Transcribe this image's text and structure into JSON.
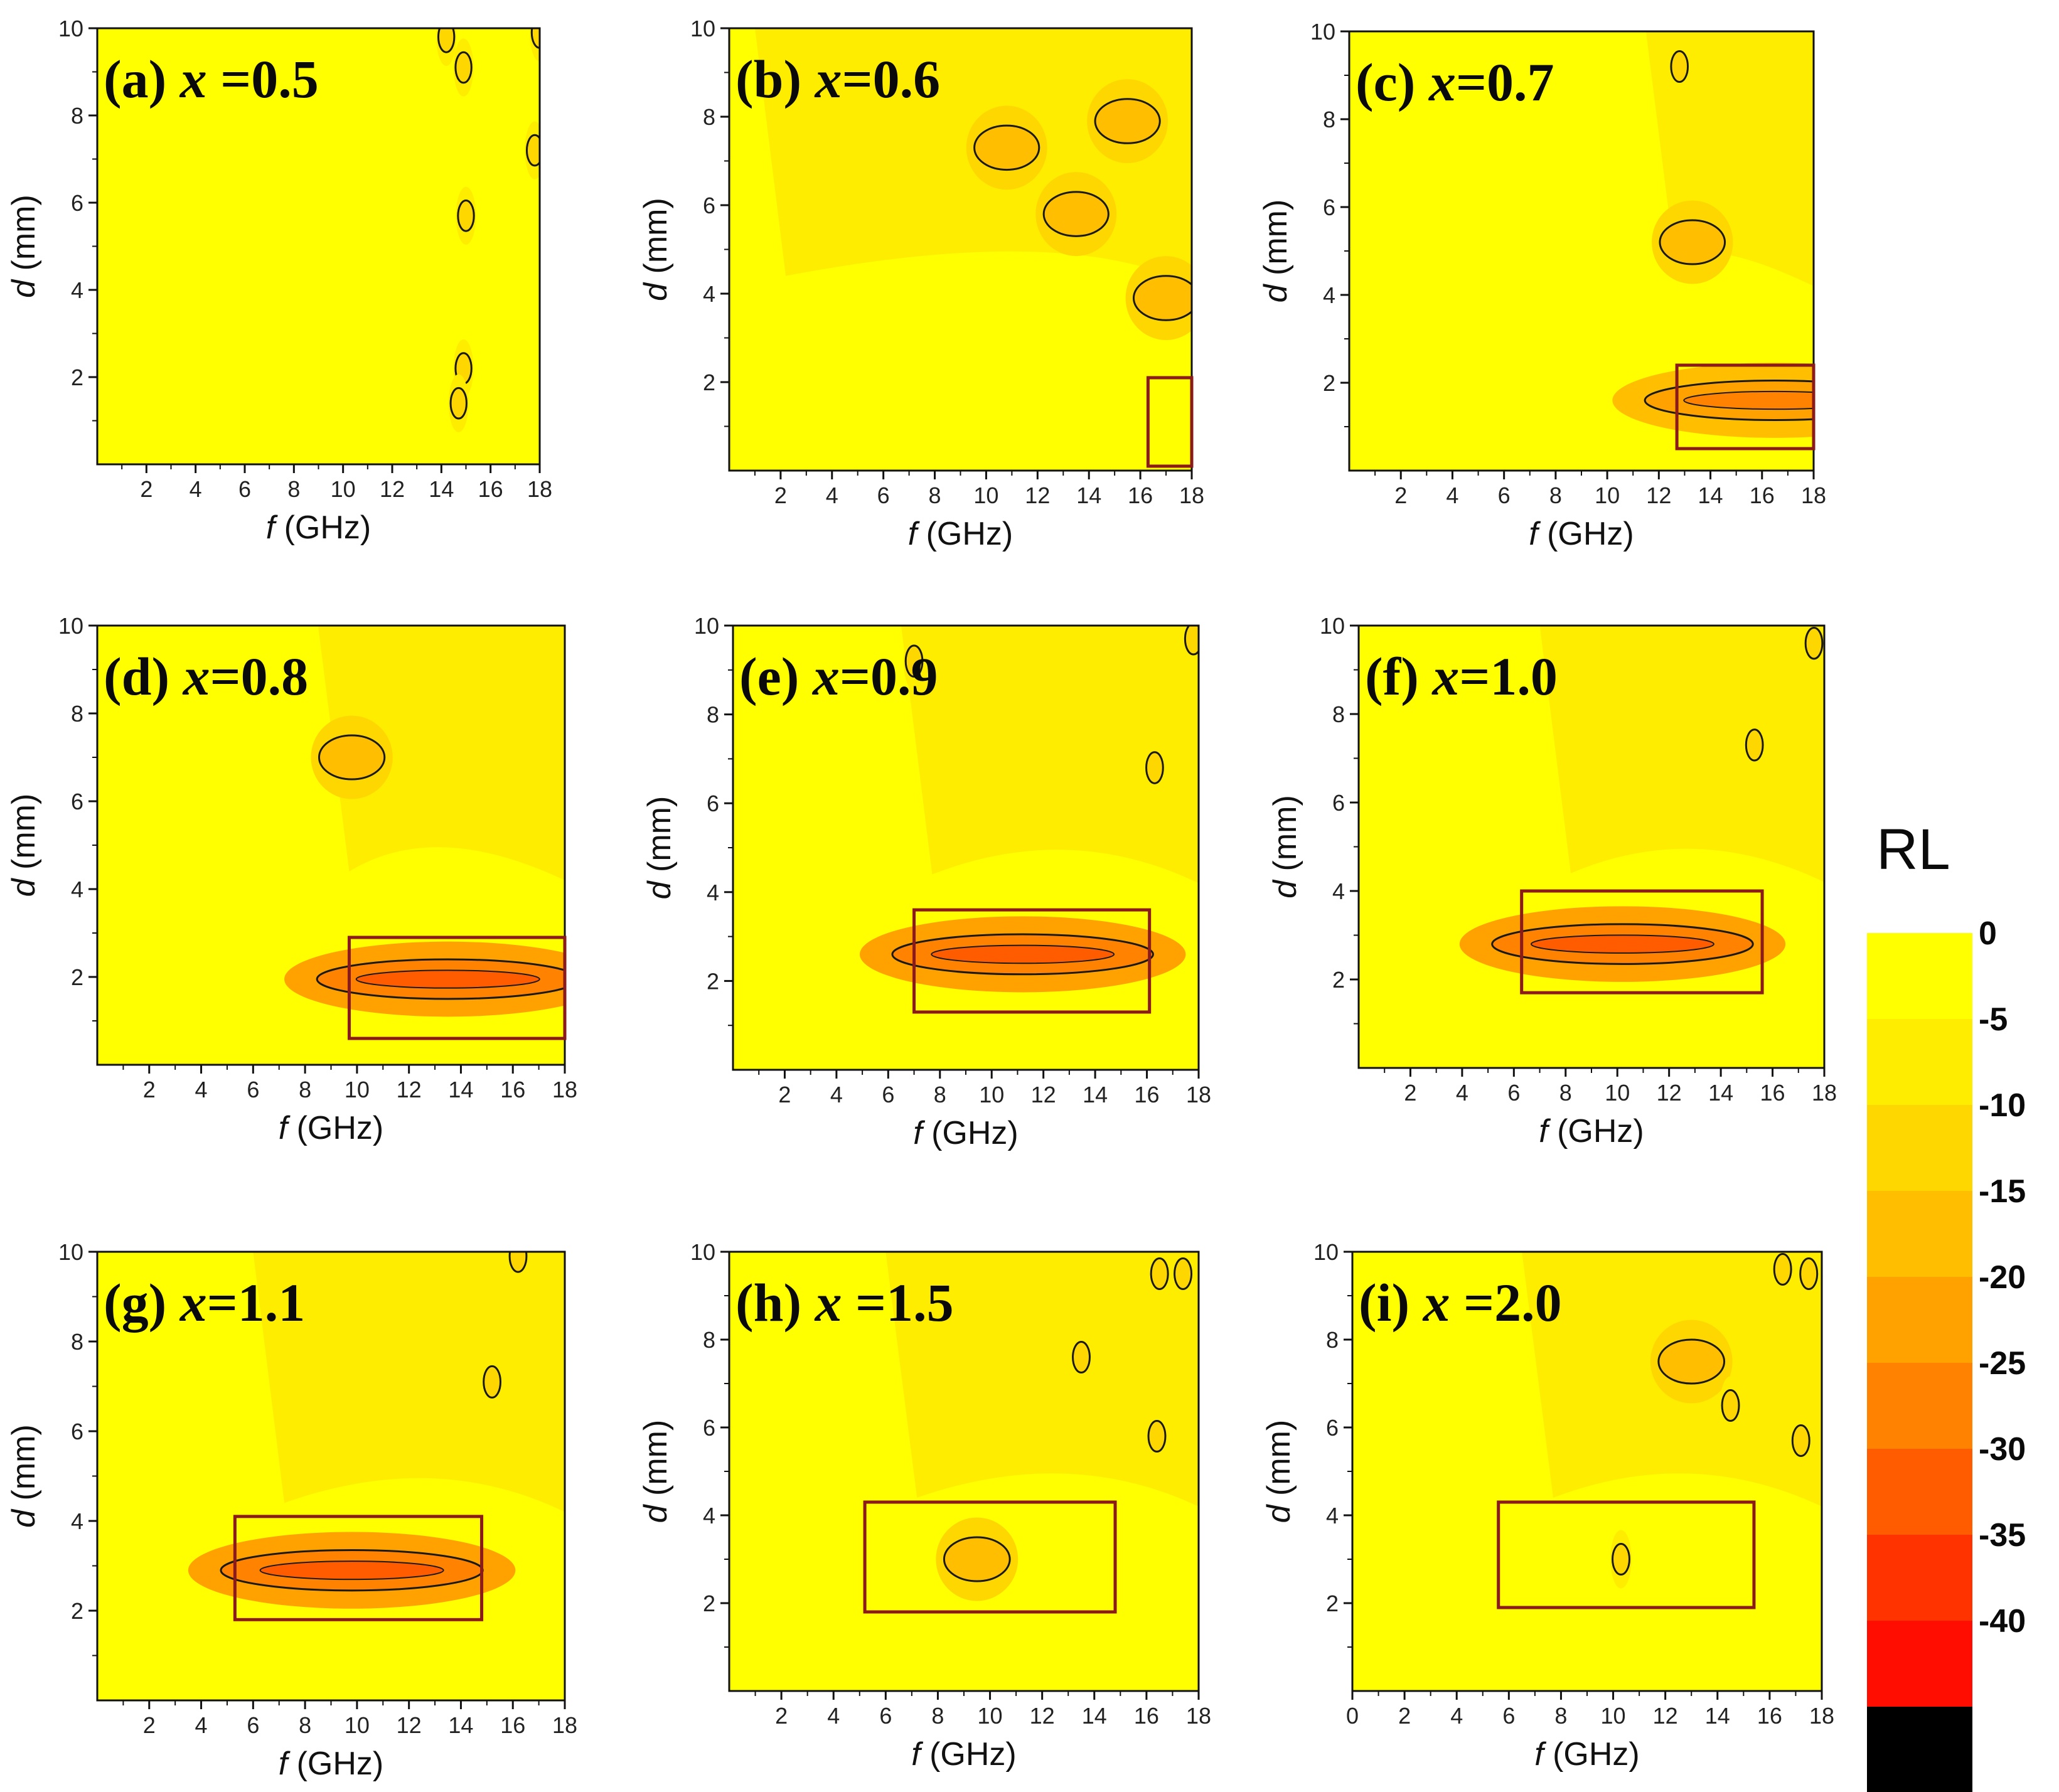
{
  "chart_data": [
    {
      "type": "heatmap",
      "panel": "(a)",
      "title_label": "(a)",
      "title_var": "x",
      "title_eq": " =0.5",
      "xlabel_var": "f",
      "xlabel_unit": " (GHz)",
      "ylabel_var": "d",
      "ylabel_unit": " (mm)",
      "xticks": [
        2,
        4,
        6,
        8,
        10,
        12,
        14,
        16,
        18
      ],
      "yticks": [
        2,
        4,
        6,
        8,
        10
      ],
      "xlim": [
        0,
        18
      ],
      "ylim": [
        0,
        10
      ],
      "features": [
        {
          "f": 14.2,
          "d": 9.8,
          "rl": -10
        },
        {
          "f": 14.9,
          "d": 9.1,
          "rl": -10
        },
        {
          "f": 18.0,
          "d": 9.9,
          "rl": -10
        },
        {
          "f": 17.8,
          "d": 7.2,
          "rl": -10
        },
        {
          "f": 15.0,
          "d": 5.7,
          "rl": -10
        },
        {
          "f": 14.9,
          "d": 2.2,
          "rl": -10
        },
        {
          "f": 14.7,
          "d": 1.4,
          "rl": -10
        }
      ]
    },
    {
      "type": "heatmap",
      "panel": "(b)",
      "title_label": "(b)",
      "title_var": "x",
      "title_eq": "=0.6",
      "xlabel_var": "f",
      "xlabel_unit": " (GHz)",
      "ylabel_var": "d",
      "ylabel_unit": " (mm)",
      "xticks": [
        2,
        4,
        6,
        8,
        10,
        12,
        14,
        16,
        18
      ],
      "yticks": [
        2,
        4,
        6,
        8,
        10
      ],
      "xlim": [
        0,
        18
      ],
      "ylim": [
        0,
        10
      ],
      "features": [
        {
          "f": 10.8,
          "d": 7.3,
          "rl": -15
        },
        {
          "f": 13.5,
          "d": 5.8,
          "rl": -15
        },
        {
          "f": 15.5,
          "d": 7.9,
          "rl": -15
        },
        {
          "f": 17.0,
          "d": 3.9,
          "rl": -15
        }
      ],
      "box": {
        "f": [
          16.3,
          18.0
        ],
        "d": [
          0.1,
          2.1
        ]
      }
    },
    {
      "type": "heatmap",
      "panel": "(c)",
      "title_label": "(c)",
      "title_var": "x",
      "title_eq": "=0.7",
      "xlabel_var": "f",
      "xlabel_unit": " (GHz)",
      "ylabel_var": "d",
      "ylabel_unit": " (mm)",
      "xticks": [
        2,
        4,
        6,
        8,
        10,
        12,
        14,
        16,
        18
      ],
      "yticks": [
        2,
        4,
        6,
        8,
        10
      ],
      "xlim": [
        0,
        18
      ],
      "ylim": [
        0,
        10
      ],
      "features": [
        {
          "f": 12.8,
          "d": 9.2,
          "rl": -10
        },
        {
          "f": 13.3,
          "d": 5.2,
          "rl": -15
        },
        {
          "f": 16.5,
          "d": 1.6,
          "rl": -20
        }
      ],
      "box": {
        "f": [
          12.7,
          18.0
        ],
        "d": [
          0.5,
          2.4
        ]
      }
    },
    {
      "type": "heatmap",
      "panel": "(d)",
      "title_label": "(d)",
      "title_var": "x",
      "title_eq": "=0.8",
      "xlabel_var": "f",
      "xlabel_unit": " (GHz)",
      "ylabel_var": "d",
      "ylabel_unit": " (mm)",
      "xticks": [
        2,
        4,
        6,
        8,
        10,
        12,
        14,
        16,
        18
      ],
      "yticks": [
        2,
        4,
        6,
        8,
        10
      ],
      "xlim": [
        0,
        18
      ],
      "ylim": [
        0,
        10
      ],
      "features": [
        {
          "f": 9.8,
          "d": 7.0,
          "rl": -15
        },
        {
          "f": 13.5,
          "d": 1.95,
          "rl": -25
        }
      ],
      "box": {
        "f": [
          9.7,
          18.0
        ],
        "d": [
          0.6,
          2.9
        ]
      }
    },
    {
      "type": "heatmap",
      "panel": "(e)",
      "title_label": "(e)",
      "title_var": "x",
      "title_eq": "=0.9",
      "xlabel_var": "f",
      "xlabel_unit": " (GHz)",
      "ylabel_var": "d",
      "ylabel_unit": " (mm)",
      "xticks": [
        2,
        4,
        6,
        8,
        10,
        12,
        14,
        16,
        18
      ],
      "yticks": [
        2,
        4,
        6,
        8,
        10
      ],
      "xlim": [
        0,
        18
      ],
      "ylim": [
        0,
        10
      ],
      "features": [
        {
          "f": 7.0,
          "d": 9.2,
          "rl": -10
        },
        {
          "f": 16.3,
          "d": 6.8,
          "rl": -10
        },
        {
          "f": 17.8,
          "d": 9.7,
          "rl": -10
        },
        {
          "f": 11.2,
          "d": 2.6,
          "rl": -25
        }
      ],
      "box": {
        "f": [
          7.0,
          16.1
        ],
        "d": [
          1.3,
          3.6
        ]
      }
    },
    {
      "type": "heatmap",
      "panel": "(f)",
      "title_label": "(f)",
      "title_var": "x",
      "title_eq": "=1.0",
      "xlabel_var": "f",
      "xlabel_unit": " (GHz)",
      "ylabel_var": "d",
      "ylabel_unit": " (mm)",
      "xticks": [
        2,
        4,
        6,
        8,
        10,
        12,
        14,
        16,
        18
      ],
      "yticks": [
        2,
        4,
        6,
        8,
        10
      ],
      "xlim": [
        0,
        18
      ],
      "ylim": [
        0,
        10
      ],
      "features": [
        {
          "f": 15.3,
          "d": 7.3,
          "rl": -10
        },
        {
          "f": 17.6,
          "d": 9.6,
          "rl": -10
        },
        {
          "f": 10.2,
          "d": 2.8,
          "rl": -25
        }
      ],
      "box": {
        "f": [
          6.3,
          15.6
        ],
        "d": [
          1.7,
          4.0
        ]
      }
    },
    {
      "type": "heatmap",
      "panel": "(g)",
      "title_label": "(g)",
      "title_var": "x",
      "title_eq": "=1.1",
      "xlabel_var": "f",
      "xlabel_unit": " (GHz)",
      "ylabel_var": "d",
      "ylabel_unit": " (mm)",
      "xticks": [
        2,
        4,
        6,
        8,
        10,
        12,
        14,
        16,
        18
      ],
      "yticks": [
        2,
        4,
        6,
        8,
        10
      ],
      "xlim": [
        0,
        18
      ],
      "ylim": [
        0,
        10
      ],
      "features": [
        {
          "f": 15.2,
          "d": 7.1,
          "rl": -10
        },
        {
          "f": 16.2,
          "d": 9.9,
          "rl": -10
        },
        {
          "f": 9.8,
          "d": 2.9,
          "rl": -25
        }
      ],
      "box": {
        "f": [
          5.3,
          14.8
        ],
        "d": [
          1.8,
          4.1
        ]
      }
    },
    {
      "type": "heatmap",
      "panel": "(h)",
      "title_label": "(h)",
      "title_var": "x",
      "title_eq": " =1.5",
      "xlabel_var": "f",
      "xlabel_unit": " (GHz)",
      "ylabel_var": "d",
      "ylabel_unit": " (mm)",
      "xticks": [
        2,
        4,
        6,
        8,
        10,
        12,
        14,
        16,
        18
      ],
      "yticks": [
        2,
        4,
        6,
        8,
        10
      ],
      "xlim": [
        0,
        18
      ],
      "ylim": [
        0,
        10
      ],
      "features": [
        {
          "f": 13.5,
          "d": 7.6,
          "rl": -10
        },
        {
          "f": 16.5,
          "d": 9.5,
          "rl": -10
        },
        {
          "f": 17.4,
          "d": 9.5,
          "rl": -10
        },
        {
          "f": 16.4,
          "d": 5.8,
          "rl": -10
        },
        {
          "f": 9.5,
          "d": 3.0,
          "rl": -15
        }
      ],
      "box": {
        "f": [
          5.2,
          14.8
        ],
        "d": [
          1.8,
          4.3
        ]
      }
    },
    {
      "type": "heatmap",
      "panel": "(i)",
      "title_label": "(i)",
      "title_var": "x",
      "title_eq": " =2.0",
      "xlabel_var": "f",
      "xlabel_unit": " (GHz)",
      "ylabel_var": "d",
      "ylabel_unit": " (mm)",
      "xticks": [
        0,
        2,
        4,
        6,
        8,
        10,
        12,
        14,
        16,
        18
      ],
      "yticks": [
        2,
        4,
        6,
        8,
        10
      ],
      "xlim": [
        0,
        18
      ],
      "ylim": [
        0,
        10
      ],
      "features": [
        {
          "f": 13.0,
          "d": 7.5,
          "rl": -15
        },
        {
          "f": 16.5,
          "d": 9.6,
          "rl": -10
        },
        {
          "f": 17.5,
          "d": 9.5,
          "rl": -10
        },
        {
          "f": 14.5,
          "d": 6.5,
          "rl": -10
        },
        {
          "f": 17.2,
          "d": 5.7,
          "rl": -10
        },
        {
          "f": 10.3,
          "d": 3.0,
          "rl": -10
        }
      ],
      "box": {
        "f": [
          5.6,
          15.4
        ],
        "d": [
          1.9,
          4.3
        ]
      }
    }
  ],
  "colorbar": {
    "title": "RL",
    "tick_labels": [
      "0",
      "-5",
      "-10",
      "-15",
      "-20",
      "-25",
      "-30",
      "-35",
      "-40"
    ],
    "levels": [
      0,
      -5,
      -10,
      -15,
      -20,
      -25,
      -30,
      -35,
      -40,
      -45
    ],
    "colors": [
      "#ffff00",
      "#ffed00",
      "#ffd700",
      "#ffbf00",
      "#ffa200",
      "#ff8200",
      "#ff5c00",
      "#ff3300",
      "#ff0d00",
      "#000000"
    ]
  },
  "box_color": "#8b1a1a",
  "contour_color": "#1a1a1a"
}
